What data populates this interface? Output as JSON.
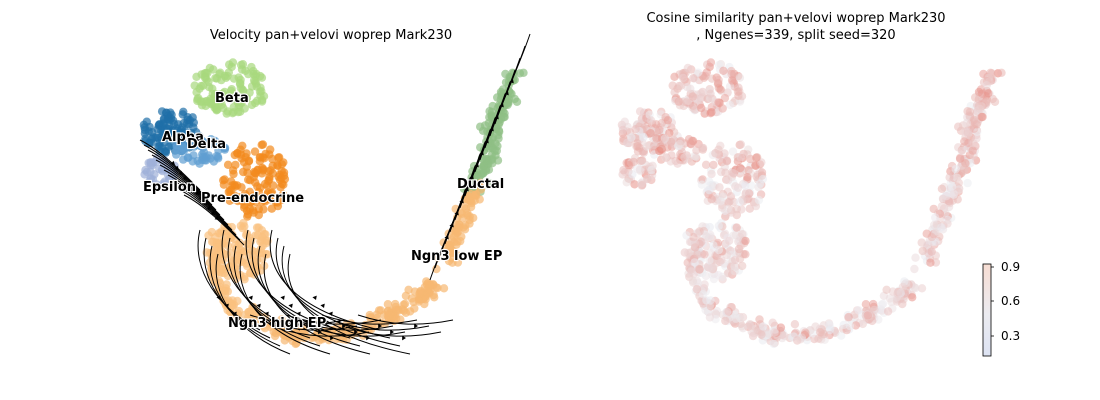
{
  "chart_data": [
    {
      "type": "scatter",
      "title": "Velocity pan+velovi woprep Mark230",
      "xlabel": "",
      "ylabel": "",
      "grid": false,
      "legend": "on data",
      "clusters": [
        {
          "name": "Beta",
          "color": "#a8d87d"
        },
        {
          "name": "Alpha",
          "color": "#1f6fa8"
        },
        {
          "name": "Delta",
          "color": "#5f9ed1"
        },
        {
          "name": "Epsilon",
          "color": "#9fb0d8"
        },
        {
          "name": "Pre-endocrine",
          "color": "#f28a1e"
        },
        {
          "name": "Ductal",
          "color": "#8fbf84"
        },
        {
          "name": "Ngn3 low EP",
          "color": "#f7b872"
        },
        {
          "name": "Ngn3 high EP",
          "color": "#fac07f"
        }
      ],
      "overlay": "velocity streamlines"
    },
    {
      "type": "scatter",
      "title": "Cosine similarity pan+velovi woprep Mark230",
      "subtitle": ", Ngenes=339, split seed=320",
      "xlabel": "",
      "ylabel": "",
      "grid": false,
      "colormap": "coolwarm",
      "colorbar": {
        "ticks": [
          "0.3",
          "0.6",
          "0.9"
        ],
        "vmin": 0.1,
        "vmax": 0.92
      },
      "values_range": [
        0.1,
        0.92
      ]
    }
  ]
}
